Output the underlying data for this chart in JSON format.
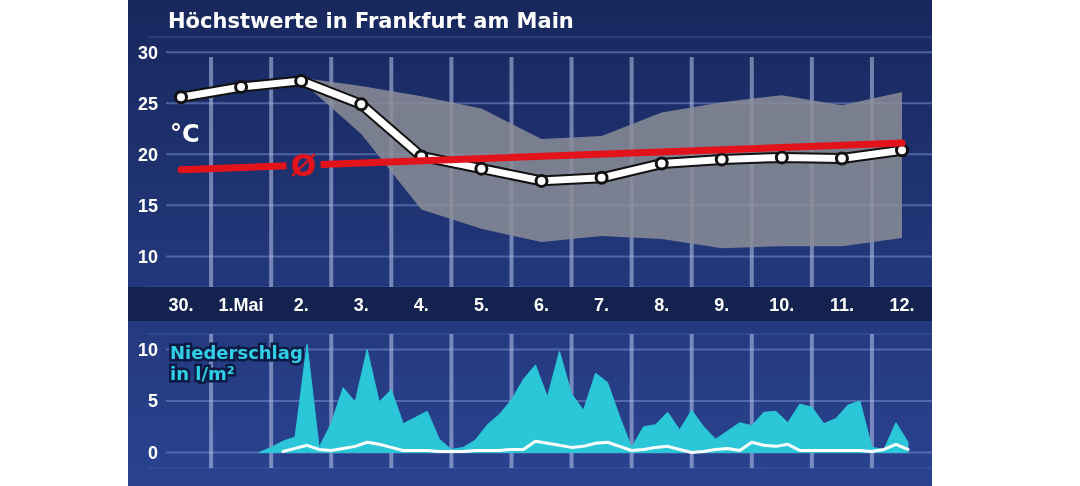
{
  "chart_data": [
    {
      "type": "line",
      "title": "Höchstwerte in Frankfurt am Main",
      "ylabel": "°C",
      "ylim": [
        7,
        31.5
      ],
      "categories": [
        "30.",
        "1.Mai",
        "2.",
        "3.",
        "4.",
        "5.",
        "6.",
        "7.",
        "8.",
        "9.",
        "10.",
        "11.",
        "12."
      ],
      "yticks": [
        10,
        15,
        20,
        25,
        30
      ],
      "grid": true,
      "marker": "circle",
      "series": [
        {
          "color": "#ffffff",
          "values": [
            25.6,
            26.6,
            27.2,
            24.9,
            19.8,
            18.6,
            17.4,
            17.7,
            19.1,
            19.5,
            19.7,
            19.6,
            20.4
          ],
          "lower": [
            null,
            null,
            27.2,
            22.0,
            14.6,
            12.7,
            11.4,
            12.0,
            11.7,
            10.8,
            11.0,
            11.0,
            11.8
          ],
          "upper": [
            null,
            null,
            27.5,
            26.7,
            25.7,
            24.5,
            21.5,
            21.8,
            24.1,
            25.1,
            25.8,
            24.8,
            26.1
          ]
        },
        {
          "name": "Ø",
          "color": "#e3131b",
          "marker": "none",
          "x": [
            "30.",
            "12."
          ],
          "values": [
            18.5,
            21.1
          ]
        }
      ]
    },
    {
      "type": "area",
      "title": "Niederschlag in l/m²",
      "ylim": [
        -1.5,
        11.5
      ],
      "tick_labels": "y",
      "categories": [
        null,
        null,
        null,
        null,
        null,
        null,
        null,
        null,
        null,
        null,
        null,
        null,
        null,
        null,
        null,
        null,
        null,
        null,
        null,
        null,
        null,
        null,
        null,
        null,
        null,
        null,
        null,
        null,
        null,
        null,
        null,
        null,
        null,
        null,
        null,
        null,
        null,
        null,
        null,
        null,
        null,
        null,
        null,
        null,
        null,
        null,
        null,
        null,
        null,
        null,
        null,
        null,
        null,
        null,
        null
      ],
      "yticks": [
        0,
        5,
        10
      ],
      "grid": true,
      "series": [
        {
          "color": "#2bc6d8",
          "values": [
            0,
            0.5,
            1.1,
            1.5,
            10.5,
            0.5,
            2.8,
            6.3,
            4.9,
            10.0,
            4.9,
            6.1,
            2.8,
            3.4,
            4.0,
            1.3,
            0.3,
            0.5,
            1.2,
            2.7,
            3.7,
            5.1,
            7.1,
            8.5,
            5.4,
            9.8,
            5.7,
            4.1,
            7.7,
            6.8,
            3.5,
            0.5,
            2.5,
            2.7,
            3.9,
            2.2,
            4.1,
            2.5,
            1.3,
            2.1,
            2.9,
            2.6,
            3.9,
            4.0,
            2.9,
            4.7,
            4.4,
            2.8,
            3.3,
            4.6,
            5.0,
            0.5,
            0.3,
            2.9,
            1.0
          ]
        },
        {
          "type": "line",
          "color": "#ffffff",
          "values": [
            null,
            null,
            0.1,
            0.4,
            0.7,
            0.3,
            0.2,
            0.4,
            0.6,
            1.0,
            0.8,
            0.5,
            0.2,
            0.2,
            0.2,
            0.1,
            0.1,
            0.1,
            0.2,
            0.2,
            0.2,
            0.3,
            0.3,
            1.1,
            0.9,
            0.7,
            0.5,
            0.6,
            0.9,
            1.0,
            0.6,
            0.2,
            0.3,
            0.5,
            0.6,
            0.3,
            0.0,
            0.1,
            0.3,
            0.4,
            0.2,
            1.0,
            0.7,
            0.6,
            0.8,
            0.2,
            0.2,
            0.2,
            0.2,
            0.2,
            0.2,
            0.1,
            0.3,
            0.8,
            0.3
          ]
        }
      ]
    }
  ]
}
